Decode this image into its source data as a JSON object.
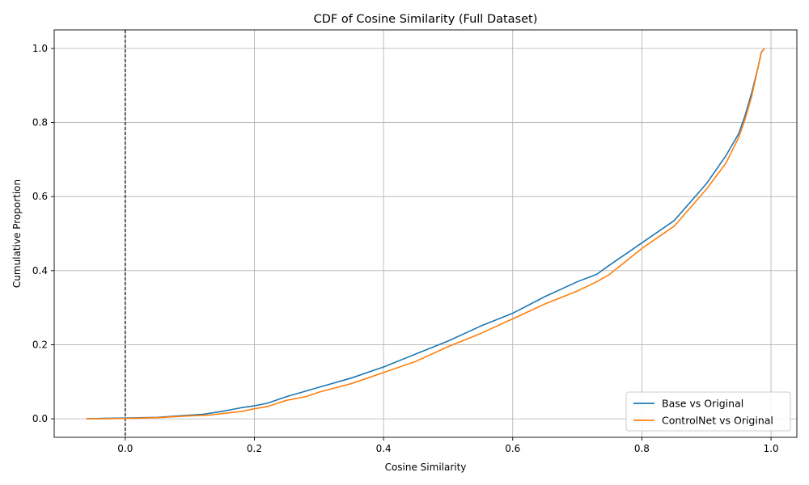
{
  "chart_data": {
    "type": "line",
    "title": "CDF of Cosine Similarity (Full Dataset)",
    "xlabel": "Cosine Similarity",
    "ylabel": "Cumulative Proportion",
    "xlim": [
      -0.11,
      1.04
    ],
    "ylim": [
      -0.05,
      1.05
    ],
    "xticks": [
      0.0,
      0.2,
      0.4,
      0.6,
      0.8,
      1.0
    ],
    "xtick_labels": [
      "0.0",
      "0.2",
      "0.4",
      "0.6",
      "0.8",
      "1.0"
    ],
    "yticks": [
      0.0,
      0.2,
      0.4,
      0.6,
      0.8,
      1.0
    ],
    "ytick_labels": [
      "0.0",
      "0.2",
      "0.4",
      "0.6",
      "0.8",
      "1.0"
    ],
    "grid": true,
    "legend_position": "bottom-right",
    "vline": {
      "x": 0.0,
      "color": "#000000",
      "style": "dashed"
    },
    "series": [
      {
        "name": "Base vs Original",
        "color": "#1f77b4",
        "x": [
          -0.06,
          -0.04,
          0.0,
          0.05,
          0.1,
          0.12,
          0.15,
          0.18,
          0.2,
          0.22,
          0.25,
          0.28,
          0.3,
          0.35,
          0.4,
          0.45,
          0.5,
          0.55,
          0.6,
          0.65,
          0.7,
          0.73,
          0.75,
          0.8,
          0.85,
          0.9,
          0.93,
          0.95,
          0.96,
          0.97,
          0.98,
          0.985,
          0.99
        ],
        "y": [
          0.0,
          0.001,
          0.002,
          0.004,
          0.01,
          0.012,
          0.02,
          0.03,
          0.035,
          0.042,
          0.06,
          0.075,
          0.085,
          0.11,
          0.14,
          0.175,
          0.21,
          0.25,
          0.285,
          0.33,
          0.37,
          0.39,
          0.415,
          0.475,
          0.535,
          0.635,
          0.71,
          0.77,
          0.82,
          0.88,
          0.95,
          0.99,
          1.0
        ]
      },
      {
        "name": "ControlNet vs Original",
        "color": "#ff7f0e",
        "x": [
          -0.06,
          -0.04,
          0.0,
          0.05,
          0.1,
          0.13,
          0.15,
          0.18,
          0.2,
          0.22,
          0.25,
          0.28,
          0.3,
          0.35,
          0.4,
          0.45,
          0.5,
          0.55,
          0.6,
          0.65,
          0.7,
          0.73,
          0.75,
          0.8,
          0.85,
          0.9,
          0.93,
          0.95,
          0.96,
          0.97,
          0.98,
          0.985,
          0.99
        ],
        "y": [
          0.0,
          0.0,
          0.001,
          0.003,
          0.008,
          0.01,
          0.014,
          0.02,
          0.027,
          0.033,
          0.05,
          0.06,
          0.072,
          0.095,
          0.125,
          0.155,
          0.195,
          0.23,
          0.27,
          0.31,
          0.345,
          0.37,
          0.39,
          0.46,
          0.52,
          0.62,
          0.69,
          0.76,
          0.81,
          0.87,
          0.95,
          0.99,
          1.0
        ]
      }
    ]
  }
}
